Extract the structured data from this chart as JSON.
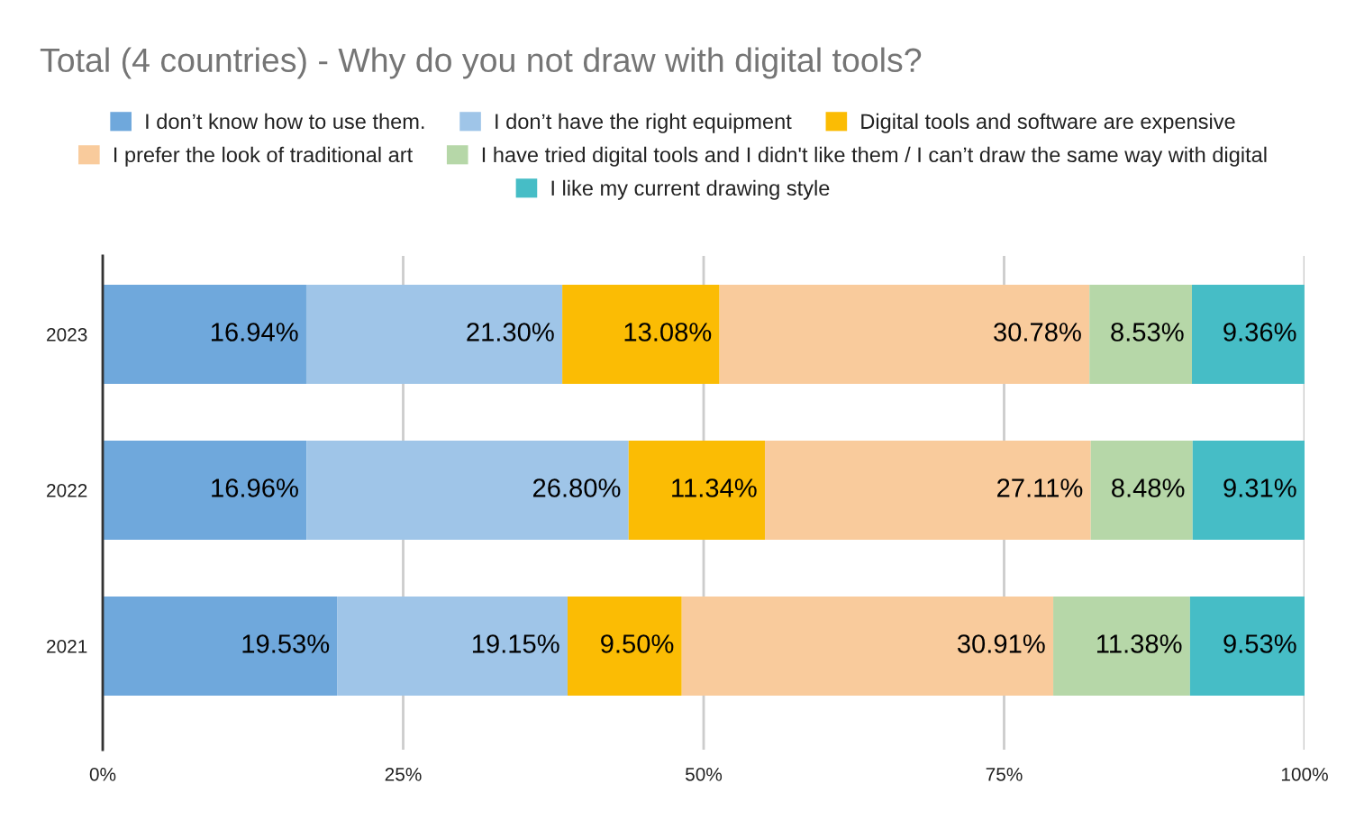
{
  "chart_data": {
    "type": "bar",
    "orientation": "horizontal",
    "stacked": true,
    "title": "Total (4 countries) - Why do you not draw with digital tools?",
    "categories": [
      "2023",
      "2022",
      "2021"
    ],
    "series": [
      {
        "name": "I don’t know how to use them.",
        "color": "#6fa8dc",
        "values": [
          16.94,
          16.96,
          19.53
        ],
        "value_labels": [
          "16.94%",
          "16.96%",
          "19.53%"
        ]
      },
      {
        "name": "I don’t have the right equipment",
        "color": "#9fc5e8",
        "values": [
          21.3,
          26.8,
          19.15
        ],
        "value_labels": [
          "21.30%",
          "26.80%",
          "19.15%"
        ]
      },
      {
        "name": "Digital tools and software are expensive",
        "color": "#fbbc04",
        "values": [
          13.08,
          11.34,
          9.5
        ],
        "value_labels": [
          "13.08%",
          "11.34%",
          "9.50%"
        ]
      },
      {
        "name": "I prefer the look of traditional art",
        "color": "#f9cb9c",
        "values": [
          30.78,
          27.11,
          30.91
        ],
        "value_labels": [
          "30.78%",
          "27.11%",
          "30.91%"
        ]
      },
      {
        "name": "I have tried digital tools and I didn't like them / I can’t draw the same way with digital",
        "color": "#b6d7a8",
        "values": [
          8.53,
          8.48,
          11.38
        ],
        "value_labels": [
          "8.53%",
          "8.48%",
          "11.38%"
        ]
      },
      {
        "name": "I like my current drawing style",
        "color": "#46bdc6",
        "values": [
          9.36,
          9.31,
          9.53
        ],
        "value_labels": [
          "9.36%",
          "9.31%",
          "9.53%"
        ]
      }
    ],
    "xlim": [
      0,
      100
    ],
    "xticks": [
      {
        "value": 0,
        "label": "0%"
      },
      {
        "value": 25,
        "label": "25%"
      },
      {
        "value": 50,
        "label": "50%"
      },
      {
        "value": 75,
        "label": "75%"
      },
      {
        "value": 100,
        "label": "100%"
      }
    ],
    "grid": "x",
    "legend": "top"
  }
}
